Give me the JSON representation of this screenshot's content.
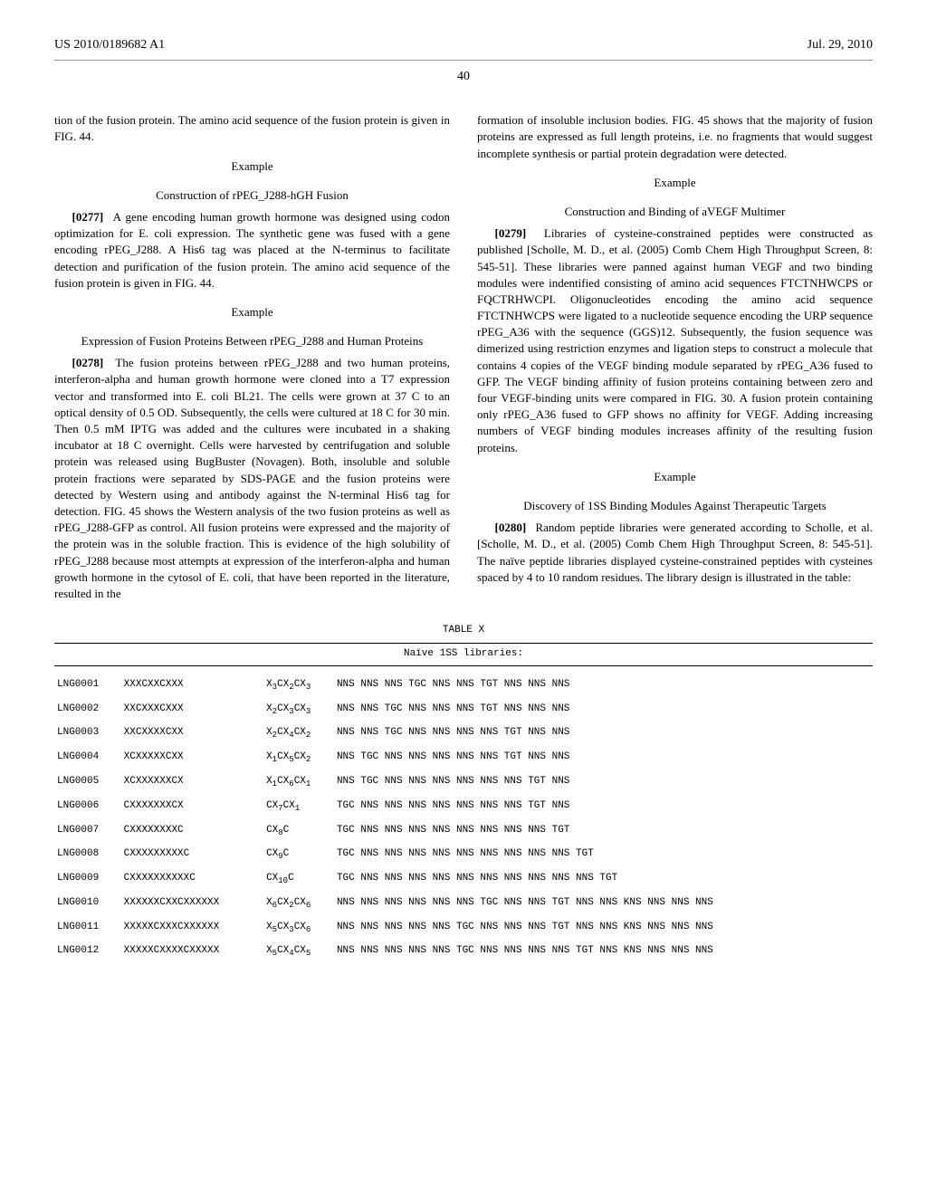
{
  "header": {
    "pub_number": "US 2010/0189682 A1",
    "pub_date": "Jul. 29, 2010"
  },
  "page_number": "40",
  "left": {
    "intro_continued": "tion of the fusion protein. The amino acid sequence of the fusion protein is given in FIG. 44.",
    "ex1_label": "Example",
    "ex1_title": "Construction of rPEG_J288-hGH Fusion",
    "p0277_num": "[0277]",
    "p0277": "A gene encoding human growth hormone was designed using codon optimization for E. coli expression. The synthetic gene was fused with a gene encoding rPEG_J288. A His6 tag was placed at the N-terminus to facilitate detection and purification of the fusion protein. The amino acid sequence of the fusion protein is given in FIG. 44.",
    "ex2_label": "Example",
    "ex2_title": "Expression of Fusion Proteins Between rPEG_J288 and Human Proteins",
    "p0278_num": "[0278]",
    "p0278": "The fusion proteins between rPEG_J288 and two human proteins, interferon-alpha and human growth hormone were cloned into a T7 expression vector and transformed into E. coli BL21. The cells were grown at 37 C to an optical density of 0.5 OD. Subsequently, the cells were cultured at 18 C for 30 min. Then 0.5 mM IPTG was added and the cultures were incubated in a shaking incubator at 18 C overnight. Cells were harvested by centrifugation and soluble protein was released using BugBuster (Novagen). Both, insoluble and soluble protein fractions were separated by SDS-PAGE and the fusion proteins were detected by Western using and antibody against the N-terminal His6 tag for detection. FIG. 45 shows the Western analysis of the two fusion proteins as well as rPEG_J288-GFP as control. All fusion proteins were expressed and the majority of the protein was in the soluble fraction. This is evidence of the high solubility of rPEG_J288 because most attempts at expression of the interferon-alpha and human growth hormone in the cytosol of E. coli, that have been reported in the literature, resulted in the"
  },
  "right": {
    "cont": "formation of insoluble inclusion bodies. FIG. 45 shows that the majority of fusion proteins are expressed as full length proteins, i.e. no fragments that would suggest incomplete synthesis or partial protein degradation were detected.",
    "ex3_label": "Example",
    "ex3_title": "Construction and Binding of aVEGF Multimer",
    "p0279_num": "[0279]",
    "p0279": "Libraries of cysteine-constrained peptides were constructed as published [Scholle, M. D., et al. (2005) Comb Chem High Throughput Screen, 8: 545-51]. These libraries were panned against human VEGF and two binding modules were indentified consisting of amino acid sequences FTCT­NHWCPS or FQCTRHWCPI. Oligonucleotides encoding the amino acid sequence FTCTNHWCPS were ligated to a nucleotide sequence encoding the URP sequence rPEG_A36 with the sequence (GGS)12. Subsequently, the fusion sequence was dimerized using restriction enzymes and ligation steps to construct a molecule that contains 4 copies of the VEGF binding module separated by rPEG_A36 fused to GFP. The VEGF binding affinity of fusion proteins containing between zero and four VEGF-binding units were compared in FIG. 30. A fusion protein containing only rPEG_A36 fused to GFP shows no affinity for VEGF. Adding increasing numbers of VEGF binding modules increases affinity of the resulting fusion proteins.",
    "ex4_label": "Example",
    "ex4_title": "Discovery of 1SS Binding Modules Against Therapeutic Targets",
    "p0280_num": "[0280]",
    "p0280": "Random peptide libraries were generated according to Scholle, et al. [Scholle, M. D., et al. (2005) Comb Chem High Throughput Screen, 8: 545-51]. The naïve peptide libraries displayed cysteine-constrained peptides with cysteines spaced by 4 to 10 random residues. The library design is illustrated in the table:"
  },
  "table": {
    "title": "TABLE X",
    "subtitle": "Naïve 1SS libraries:",
    "rows": [
      {
        "id": "LNG0001",
        "pattern": "XXXCXXCXXX",
        "formula": "X<sub>3</sub>CX<sub>2</sub>CX<sub>3</sub>",
        "codons": "NNS NNS NNS TGC NNS NNS TGT NNS NNS NNS"
      },
      {
        "id": "LNG0002",
        "pattern": "XXCXXXCXXX",
        "formula": "X<sub>2</sub>CX<sub>3</sub>CX<sub>3</sub>",
        "codons": "NNS NNS TGC NNS NNS NNS TGT NNS NNS NNS"
      },
      {
        "id": "LNG0003",
        "pattern": "XXCXXXXCXX",
        "formula": "X<sub>2</sub>CX<sub>4</sub>CX<sub>2</sub>",
        "codons": "NNS NNS TGC NNS NNS NNS NNS TGT NNS NNS"
      },
      {
        "id": "LNG0004",
        "pattern": "XCXXXXXCXX",
        "formula": "X<sub>1</sub>CX<sub>5</sub>CX<sub>2</sub>",
        "codons": "NNS TGC NNS NNS NNS NNS NNS TGT NNS NNS"
      },
      {
        "id": "LNG0005",
        "pattern": "XCXXXXXXCX",
        "formula": "X<sub>1</sub>CX<sub>6</sub>CX<sub>1</sub>",
        "codons": "NNS TGC NNS NNS NNS NNS NNS NNS TGT NNS"
      },
      {
        "id": "LNG0006",
        "pattern": "CXXXXXXXCX",
        "formula": "CX<sub>7</sub>CX<sub>1</sub>",
        "codons": "TGC NNS NNS NNS NNS NNS NNS NNS TGT NNS"
      },
      {
        "id": "LNG0007",
        "pattern": "CXXXXXXXXC",
        "formula": "CX<sub>8</sub>C",
        "codons": "TGC NNS NNS NNS NNS NNS NNS NNS NNS TGT"
      },
      {
        "id": "LNG0008",
        "pattern": "CXXXXXXXXXC",
        "formula": "CX<sub>9</sub>C",
        "codons": "TGC NNS NNS NNS NNS NNS NNS NNS NNS NNS TGT"
      },
      {
        "id": "LNG0009",
        "pattern": "CXXXXXXXXXXC",
        "formula": "CX<sub>10</sub>C",
        "codons": "TGC NNS NNS NNS NNS NNS NNS NNS NNS NNS NNS TGT"
      },
      {
        "id": "LNG0010",
        "pattern": "XXXXXXCXXCXXXXXX",
        "formula": "X<sub>6</sub>CX<sub>2</sub>CX<sub>6</sub>",
        "codons": "NNS NNS NNS NNS NNS NNS TGC NNS NNS TGT NNS NNS KNS NNS NNS NNS"
      },
      {
        "id": "LNG0011",
        "pattern": "XXXXXCXXXCXXXXXX",
        "formula": "X<sub>5</sub>CX<sub>3</sub>CX<sub>6</sub>",
        "codons": "NNS NNS NNS NNS NNS TGC NNS NNS NNS TGT NNS NNS KNS NNS NNS NNS"
      },
      {
        "id": "LNG0012",
        "pattern": "XXXXXCXXXXCXXXXX",
        "formula": "X<sub>5</sub>CX<sub>4</sub>CX<sub>5</sub>",
        "codons": "NNS NNS NNS NNS NNS TGC NNS NNS NNS NNS TGT NNS KNS NNS NNS NNS"
      }
    ]
  }
}
